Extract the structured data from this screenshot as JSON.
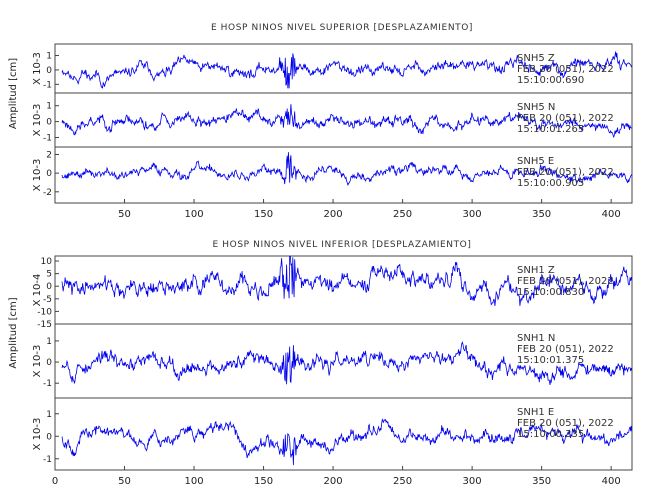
{
  "chart_data": [
    {
      "type": "line",
      "title": "E HOSP NINOS NIVEL SUPERIOR [DESPLAZAMIENTO]",
      "ylabel": "Amplitud [cm]",
      "xlim": [
        0,
        415
      ],
      "xticks": [
        50,
        100,
        150,
        200,
        250,
        300,
        350,
        400
      ],
      "event_x": 168,
      "grid": false,
      "series": [
        {
          "scale_label": "X 10-3",
          "yticks": [
            -1,
            0,
            1
          ],
          "ylim": [
            -1.6,
            1.8
          ],
          "amplitude": 0.6,
          "seed": 11,
          "annotation": [
            "SNH5   Z",
            "FEB 20 (051), 2022",
            "15:10:00.690"
          ]
        },
        {
          "scale_label": "X 10-3",
          "yticks": [
            -1,
            0,
            1
          ],
          "ylim": [
            -1.6,
            1.8
          ],
          "amplitude": 0.55,
          "seed": 23,
          "annotation": [
            "SNH5   N",
            "FEB 20 (051), 2022",
            "15:10:01.265"
          ]
        },
        {
          "scale_label": "X 10-3",
          "yticks": [
            -2,
            0,
            2
          ],
          "ylim": [
            -3.2,
            2.8
          ],
          "amplitude": 0.8,
          "seed": 37,
          "annotation": [
            "SNH5   E",
            "FEB 20 (051), 2022",
            "15:10:00.905"
          ]
        }
      ]
    },
    {
      "type": "line",
      "title": "E HOSP NINOS NIVEL INFERIOR [DESPLAZAMIENTO]",
      "ylabel": "Amplitud [cm]",
      "xlim": [
        0,
        415
      ],
      "xticks": [
        0,
        50,
        100,
        150,
        200,
        250,
        300,
        350,
        400
      ],
      "event_x": 168,
      "grid": false,
      "series": [
        {
          "scale_label": "X 10-4",
          "yticks": [
            -15,
            -10,
            -5,
            0,
            5,
            10
          ],
          "ylim": [
            -15,
            12
          ],
          "amplitude": 5.5,
          "seed": 41,
          "annotation": [
            "SNH1   Z",
            "FEB 20 (051), 2022",
            "15:10:00.830"
          ]
        },
        {
          "scale_label": "X 10-3",
          "yticks": [
            -1,
            0,
            1
          ],
          "ylim": [
            -1.7,
            1.8
          ],
          "amplitude": 0.55,
          "seed": 53,
          "annotation": [
            "SNH1   N",
            "FEB 20 (051), 2022",
            "15:10:01.375"
          ]
        },
        {
          "scale_label": "X 10-3",
          "yticks": [
            -1,
            0,
            1
          ],
          "ylim": [
            -1.5,
            1.7
          ],
          "amplitude": 0.45,
          "seed": 67,
          "annotation": [
            "SNH1   E",
            "FEB 20 (051), 2022",
            "15:10:00.335"
          ]
        }
      ]
    }
  ],
  "colors": {
    "trace": "#0000ee",
    "axis": "#444444"
  }
}
